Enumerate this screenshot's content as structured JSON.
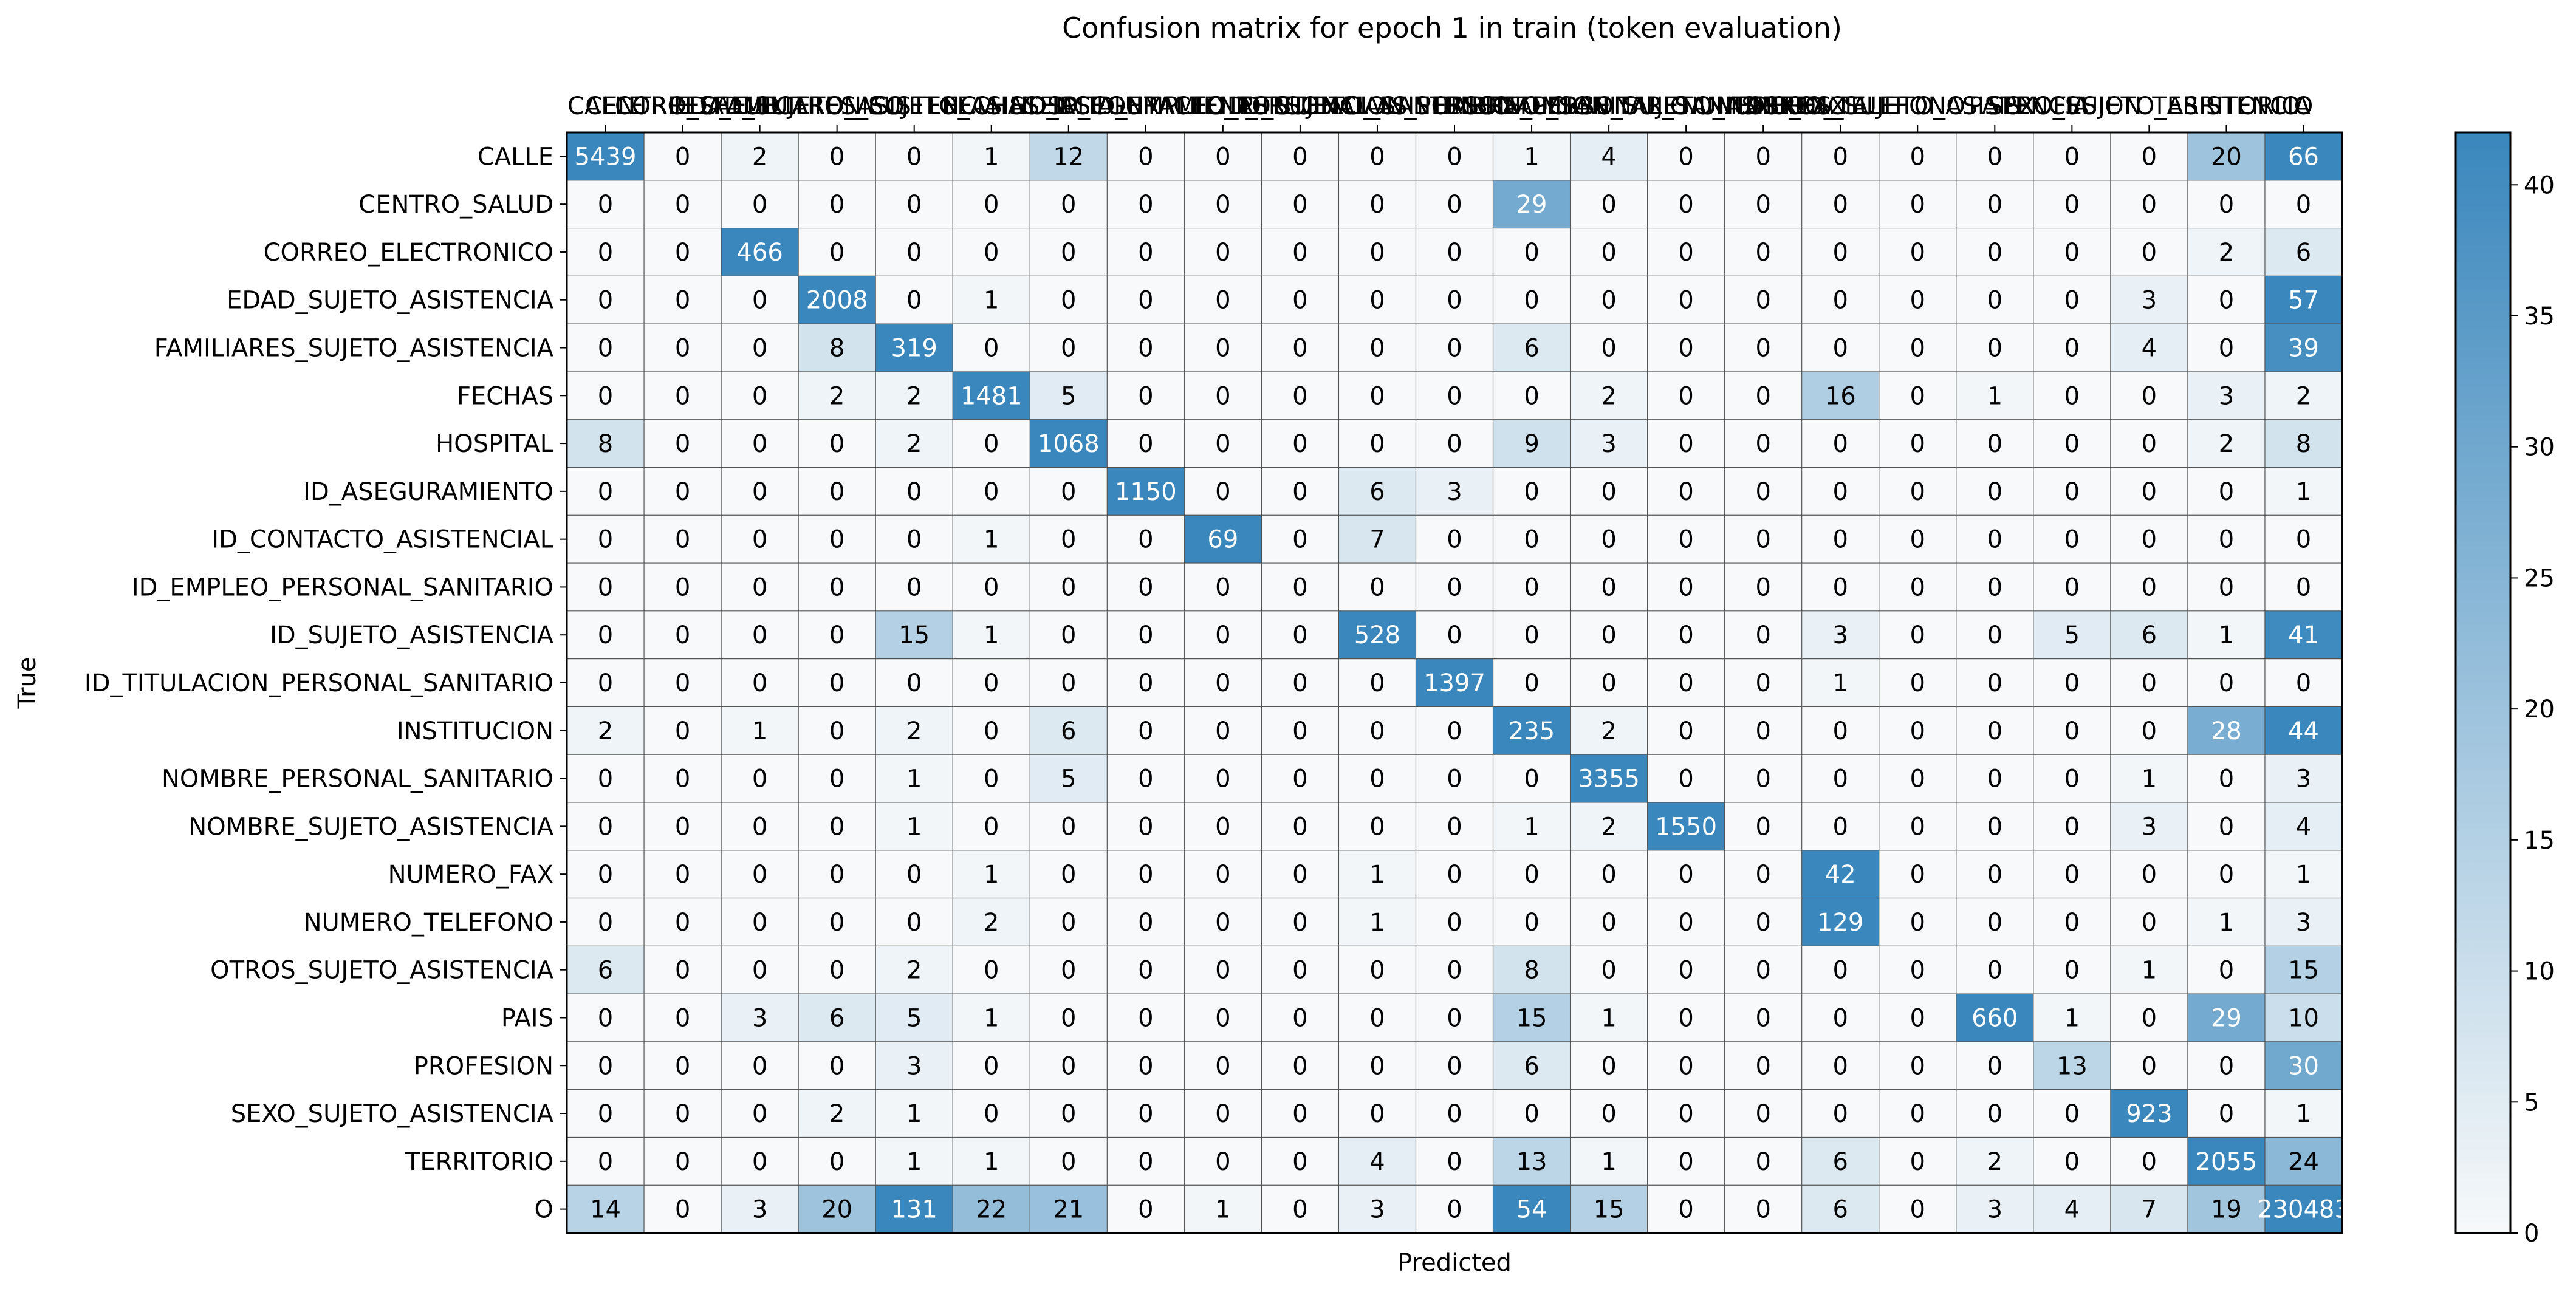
{
  "chart_data": {
    "type": "heatmap",
    "title": "Confusion matrix for epoch 1 in train (token evaluation)",
    "xlabel": "Predicted",
    "ylabel": "True",
    "labels": [
      "CALLE",
      "CENTRO_SALUD",
      "CORREO_ELECTRONICO",
      "EDAD_SUJETO_ASISTENCIA",
      "FAMILIARES_SUJETO_ASISTENCIA",
      "FECHAS",
      "HOSPITAL",
      "ID_ASEGURAMIENTO",
      "ID_CONTACTO_ASISTENCIAL",
      "ID_EMPLEO_PERSONAL_SANITARIO",
      "ID_SUJETO_ASISTENCIA",
      "ID_TITULACION_PERSONAL_SANITARIO",
      "INSTITUCION",
      "NOMBRE_PERSONAL_SANITARIO",
      "NOMBRE_SUJETO_ASISTENCIA",
      "NUMERO_FAX",
      "NUMERO_TELEFONO",
      "OTROS_SUJETO_ASISTENCIA",
      "PAIS",
      "PROFESION",
      "SEXO_SUJETO_ASISTENCIA",
      "TERRITORIO",
      "O"
    ],
    "matrix": [
      [
        5439,
        0,
        2,
        0,
        0,
        1,
        12,
        0,
        0,
        0,
        0,
        0,
        1,
        4,
        0,
        0,
        0,
        0,
        0,
        0,
        0,
        20,
        66
      ],
      [
        0,
        0,
        0,
        0,
        0,
        0,
        0,
        0,
        0,
        0,
        0,
        0,
        29,
        0,
        0,
        0,
        0,
        0,
        0,
        0,
        0,
        0,
        0
      ],
      [
        0,
        0,
        466,
        0,
        0,
        0,
        0,
        0,
        0,
        0,
        0,
        0,
        0,
        0,
        0,
        0,
        0,
        0,
        0,
        0,
        0,
        2,
        6
      ],
      [
        0,
        0,
        0,
        2008,
        0,
        1,
        0,
        0,
        0,
        0,
        0,
        0,
        0,
        0,
        0,
        0,
        0,
        0,
        0,
        0,
        3,
        0,
        57
      ],
      [
        0,
        0,
        0,
        8,
        319,
        0,
        0,
        0,
        0,
        0,
        0,
        0,
        6,
        0,
        0,
        0,
        0,
        0,
        0,
        0,
        4,
        0,
        39
      ],
      [
        0,
        0,
        0,
        2,
        2,
        1481,
        5,
        0,
        0,
        0,
        0,
        0,
        0,
        2,
        0,
        0,
        16,
        0,
        1,
        0,
        0,
        3,
        2
      ],
      [
        8,
        0,
        0,
        0,
        2,
        0,
        1068,
        0,
        0,
        0,
        0,
        0,
        9,
        3,
        0,
        0,
        0,
        0,
        0,
        0,
        0,
        2,
        8
      ],
      [
        0,
        0,
        0,
        0,
        0,
        0,
        0,
        1150,
        0,
        0,
        6,
        3,
        0,
        0,
        0,
        0,
        0,
        0,
        0,
        0,
        0,
        0,
        1
      ],
      [
        0,
        0,
        0,
        0,
        0,
        1,
        0,
        0,
        69,
        0,
        7,
        0,
        0,
        0,
        0,
        0,
        0,
        0,
        0,
        0,
        0,
        0,
        0
      ],
      [
        0,
        0,
        0,
        0,
        0,
        0,
        0,
        0,
        0,
        0,
        0,
        0,
        0,
        0,
        0,
        0,
        0,
        0,
        0,
        0,
        0,
        0,
        0
      ],
      [
        0,
        0,
        0,
        0,
        15,
        1,
        0,
        0,
        0,
        0,
        528,
        0,
        0,
        0,
        0,
        0,
        3,
        0,
        0,
        5,
        6,
        1,
        41
      ],
      [
        0,
        0,
        0,
        0,
        0,
        0,
        0,
        0,
        0,
        0,
        0,
        1397,
        0,
        0,
        0,
        0,
        1,
        0,
        0,
        0,
        0,
        0,
        0
      ],
      [
        2,
        0,
        1,
        0,
        2,
        0,
        6,
        0,
        0,
        0,
        0,
        0,
        235,
        2,
        0,
        0,
        0,
        0,
        0,
        0,
        0,
        28,
        44
      ],
      [
        0,
        0,
        0,
        0,
        1,
        0,
        5,
        0,
        0,
        0,
        0,
        0,
        0,
        3355,
        0,
        0,
        0,
        0,
        0,
        0,
        1,
        0,
        3
      ],
      [
        0,
        0,
        0,
        0,
        1,
        0,
        0,
        0,
        0,
        0,
        0,
        0,
        1,
        2,
        1550,
        0,
        0,
        0,
        0,
        0,
        3,
        0,
        4
      ],
      [
        0,
        0,
        0,
        0,
        0,
        1,
        0,
        0,
        0,
        0,
        1,
        0,
        0,
        0,
        0,
        0,
        42,
        0,
        0,
        0,
        0,
        0,
        1
      ],
      [
        0,
        0,
        0,
        0,
        0,
        2,
        0,
        0,
        0,
        0,
        1,
        0,
        0,
        0,
        0,
        0,
        129,
        0,
        0,
        0,
        0,
        1,
        3
      ],
      [
        6,
        0,
        0,
        0,
        2,
        0,
        0,
        0,
        0,
        0,
        0,
        0,
        8,
        0,
        0,
        0,
        0,
        0,
        0,
        0,
        1,
        0,
        15
      ],
      [
        0,
        0,
        3,
        6,
        5,
        1,
        0,
        0,
        0,
        0,
        0,
        0,
        15,
        1,
        0,
        0,
        0,
        0,
        660,
        1,
        0,
        29,
        10
      ],
      [
        0,
        0,
        0,
        0,
        3,
        0,
        0,
        0,
        0,
        0,
        0,
        0,
        6,
        0,
        0,
        0,
        0,
        0,
        0,
        13,
        0,
        0,
        30
      ],
      [
        0,
        0,
        0,
        2,
        1,
        0,
        0,
        0,
        0,
        0,
        0,
        0,
        0,
        0,
        0,
        0,
        0,
        0,
        0,
        0,
        923,
        0,
        1
      ],
      [
        0,
        0,
        0,
        0,
        1,
        1,
        0,
        0,
        0,
        0,
        4,
        0,
        13,
        1,
        0,
        0,
        6,
        0,
        2,
        0,
        0,
        2055,
        24
      ],
      [
        14,
        0,
        3,
        20,
        131,
        22,
        21,
        0,
        1,
        0,
        3,
        0,
        54,
        15,
        0,
        0,
        6,
        0,
        3,
        4,
        7,
        19,
        230483
      ]
    ],
    "colorbar": {
      "min": 0,
      "max": 42,
      "ticks": [
        0,
        5,
        10,
        15,
        20,
        25,
        30,
        35,
        40
      ],
      "color_low": "#f7f9fa",
      "color_high": "#3a87bd"
    }
  }
}
